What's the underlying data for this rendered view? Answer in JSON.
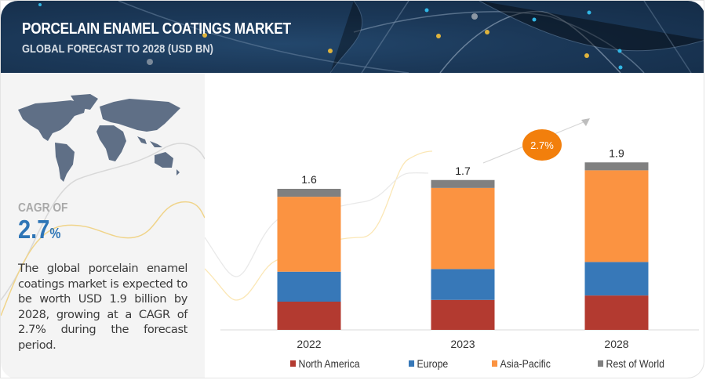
{
  "header": {
    "title": "PORCELAIN ENAMEL COATINGS MARKET",
    "subtitle": "GLOBAL FORECAST TO 2028 (USD BN)"
  },
  "left_panel": {
    "map_icon": "world-map-icon",
    "cagr_label": "CAGR OF",
    "cagr_value": "2.7",
    "cagr_unit": "%",
    "description": "The global porcelain enamel coatings market is expected to be worth USD 1.9 billion by 2028, growing at a CAGR of 2.7% during the forecast period."
  },
  "colors": {
    "north_america": "#b33a30",
    "europe": "#3778b8",
    "asia_pacific": "#fb9341",
    "rest_of_world": "#808080",
    "cagr_badge": "#f27f0c",
    "cagr_text": "#2e75b6"
  },
  "chart_data": {
    "type": "bar",
    "stacked": true,
    "title": "Porcelain Enamel Coatings Market",
    "subtitle": "Global Forecast to 2028 (USD BN)",
    "xlabel": "",
    "ylabel": "",
    "categories": [
      "2022",
      "2023",
      "2028"
    ],
    "totals": [
      "1.6",
      "1.7",
      "1.9"
    ],
    "series": [
      {
        "name": "North America",
        "values": [
          0.32,
          0.34,
          0.39
        ]
      },
      {
        "name": "Europe",
        "values": [
          0.34,
          0.35,
          0.38
        ]
      },
      {
        "name": "Asia-Pacific",
        "values": [
          0.85,
          0.92,
          1.04
        ]
      },
      {
        "name": "Rest of World",
        "values": [
          0.09,
          0.09,
          0.09
        ]
      }
    ],
    "ylim": [
      0,
      1.9
    ],
    "grid": false,
    "legend_position": "bottom",
    "annotation": {
      "label": "2.7%",
      "meaning": "CAGR 2023-2028"
    }
  }
}
